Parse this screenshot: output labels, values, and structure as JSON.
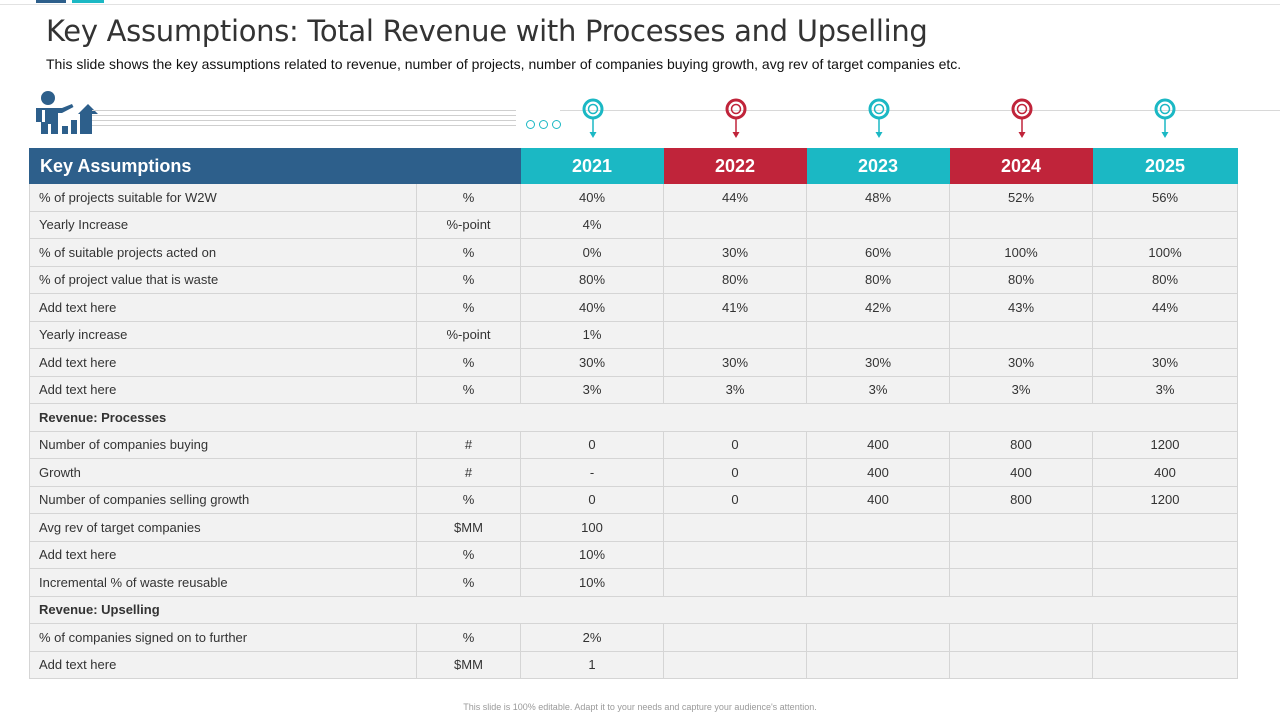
{
  "title": "Key Assumptions: Total Revenue with Processes and Upselling",
  "subtitle": "This slide shows the key assumptions related to revenue, number of projects, number of companies buying growth, avg rev of target companies etc.",
  "colors": {
    "navy": "#2d5f8b",
    "teal": "#1bb8c4",
    "red": "#c0243a"
  },
  "table": {
    "header_label": "Key Assumptions",
    "years": [
      "2021",
      "2022",
      "2023",
      "2024",
      "2025"
    ],
    "rows": [
      {
        "label": "% of projects suitable for W2W",
        "unit": "%",
        "values": [
          "40%",
          "44%",
          "48%",
          "52%",
          "56%"
        ]
      },
      {
        "label": "Yearly Increase",
        "unit": "%-point",
        "values": [
          "4%",
          "",
          "",
          "",
          ""
        ]
      },
      {
        "label": "% of suitable projects acted on",
        "unit": "%",
        "values": [
          "0%",
          "30%",
          "60%",
          "100%",
          "100%"
        ]
      },
      {
        "label": "% of project value that is waste",
        "unit": "%",
        "values": [
          "80%",
          "80%",
          "80%",
          "80%",
          "80%"
        ]
      },
      {
        "label": "Add text here",
        "unit": "%",
        "values": [
          "40%",
          "41%",
          "42%",
          "43%",
          "44%"
        ]
      },
      {
        "label": "Yearly increase",
        "unit": "%-point",
        "values": [
          "1%",
          "",
          "",
          "",
          ""
        ]
      },
      {
        "label": "Add text here",
        "unit": "%",
        "values": [
          "30%",
          "30%",
          "30%",
          "30%",
          "30%"
        ]
      },
      {
        "label": "Add text here",
        "unit": "%",
        "values": [
          "3%",
          "3%",
          "3%",
          "3%",
          "3%"
        ]
      },
      {
        "section": "Revenue: Processes"
      },
      {
        "label": "Number of companies buying",
        "unit": "#",
        "values": [
          "0",
          "0",
          "400",
          "800",
          "1200"
        ]
      },
      {
        "label": "Growth",
        "unit": "#",
        "values": [
          "-",
          "0",
          "400",
          "400",
          "400"
        ]
      },
      {
        "label": "Number of companies selling growth",
        "unit": "%",
        "values": [
          "0",
          "0",
          "400",
          "800",
          "1200"
        ]
      },
      {
        "label": "Avg rev of target companies",
        "unit": "$MM",
        "values": [
          "100",
          "",
          "",
          "",
          ""
        ]
      },
      {
        "label": "Add text here",
        "unit": "%",
        "values": [
          "10%",
          "",
          "",
          "",
          ""
        ]
      },
      {
        "label": "Incremental % of waste reusable",
        "unit": "%",
        "values": [
          "10%",
          "",
          "",
          "",
          ""
        ]
      },
      {
        "section": "Revenue: Upselling"
      },
      {
        "label": "% of companies signed on to further",
        "unit": "%",
        "values": [
          "2%",
          "",
          "",
          "",
          ""
        ]
      },
      {
        "label": "Add text here",
        "unit": "$MM",
        "values": [
          "1",
          "",
          "",
          "",
          ""
        ]
      }
    ]
  },
  "footer": "This slide is 100% editable. Adapt it to your needs and capture your audience's attention."
}
